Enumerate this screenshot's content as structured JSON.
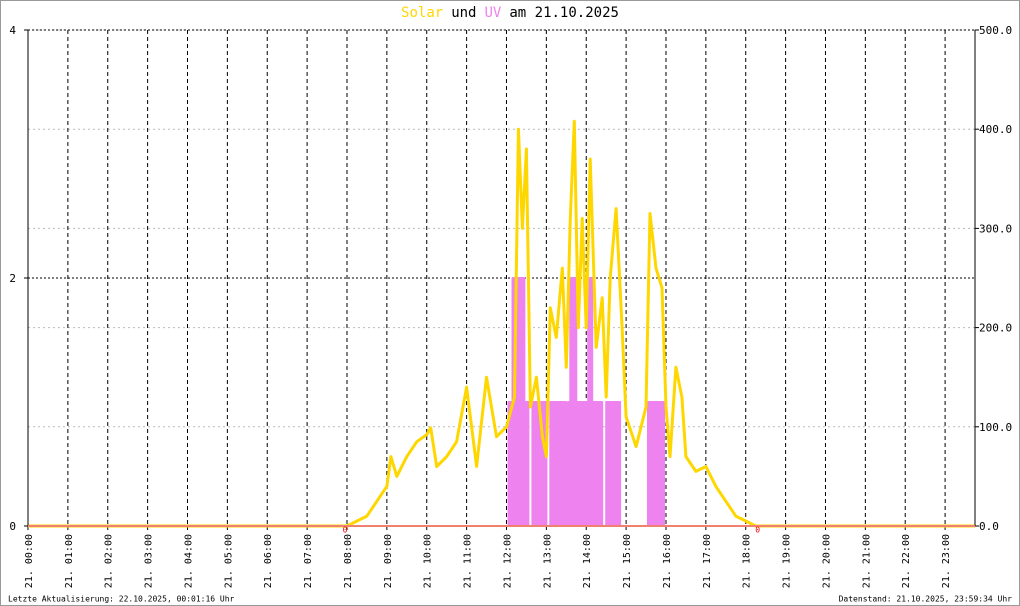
{
  "chart_data": {
    "type": "line",
    "title": [
      "Solar",
      "und",
      "UV",
      "am 21.10.2025"
    ],
    "xlim": [
      0,
      23.75
    ],
    "xticks": [
      {
        "value": 0,
        "label": "21. 00:00"
      },
      {
        "value": 1,
        "label": "21. 01:00"
      },
      {
        "value": 2,
        "label": "21. 02:00"
      },
      {
        "value": 3,
        "label": "21. 03:00"
      },
      {
        "value": 4,
        "label": "21. 04:00"
      },
      {
        "value": 5,
        "label": "21. 05:00"
      },
      {
        "value": 6,
        "label": "21. 06:00"
      },
      {
        "value": 7,
        "label": "21. 07:00"
      },
      {
        "value": 8,
        "label": "21. 08:00"
      },
      {
        "value": 9,
        "label": "21. 09:00"
      },
      {
        "value": 10,
        "label": "21. 10:00"
      },
      {
        "value": 11,
        "label": "21. 11:00"
      },
      {
        "value": 12,
        "label": "21. 12:00"
      },
      {
        "value": 13,
        "label": "21. 13:00"
      },
      {
        "value": 14,
        "label": "21. 14:00"
      },
      {
        "value": 15,
        "label": "21. 15:00"
      },
      {
        "value": 16,
        "label": "21. 16:00"
      },
      {
        "value": 17,
        "label": "21. 17:00"
      },
      {
        "value": 18,
        "label": "21. 18:00"
      },
      {
        "value": 19,
        "label": "21. 19:00"
      },
      {
        "value": 20,
        "label": "21. 20:00"
      },
      {
        "value": 21,
        "label": "21. 21:00"
      },
      {
        "value": 22,
        "label": "21. 22:00"
      },
      {
        "value": 23,
        "label": "21. 23:00"
      }
    ],
    "ylim": [
      0,
      4
    ],
    "yticks": [
      0,
      2,
      4
    ],
    "y2lim": [
      0,
      500
    ],
    "y2ticks": [
      {
        "value": 0,
        "label": "0.0"
      },
      {
        "value": 100,
        "label": "100.0"
      },
      {
        "value": 200,
        "label": "200.0"
      },
      {
        "value": 300,
        "label": "300.0"
      },
      {
        "value": 400,
        "label": "400.0"
      },
      {
        "value": 500,
        "label": "500.0"
      }
    ],
    "grid": true,
    "series": [
      {
        "name": "Solar",
        "color": "#ffd700",
        "axis": "y2",
        "x": [
          0,
          8.0,
          8.25,
          8.5,
          8.75,
          9.0,
          9.1,
          9.25,
          9.5,
          9.75,
          10.0,
          10.1,
          10.25,
          10.5,
          10.75,
          11.0,
          11.25,
          11.5,
          11.75,
          12.0,
          12.2,
          12.3,
          12.4,
          12.5,
          12.6,
          12.75,
          12.9,
          13.0,
          13.1,
          13.25,
          13.4,
          13.5,
          13.6,
          13.7,
          13.8,
          13.9,
          14.0,
          14.1,
          14.25,
          14.4,
          14.5,
          14.6,
          14.75,
          14.9,
          15.0,
          15.25,
          15.5,
          15.6,
          15.75,
          15.9,
          16.0,
          16.1,
          16.25,
          16.4,
          16.5,
          16.75,
          17.0,
          17.25,
          17.5,
          17.75,
          18.0,
          18.25,
          23.75
        ],
        "values": [
          0,
          0,
          5,
          10,
          25,
          40,
          70,
          50,
          70,
          85,
          92,
          99,
          60,
          70,
          85,
          140,
          60,
          150,
          90,
          100,
          130,
          400,
          300,
          380,
          120,
          150,
          90,
          70,
          220,
          190,
          260,
          160,
          310,
          408,
          200,
          310,
          200,
          370,
          180,
          230,
          130,
          250,
          320,
          200,
          110,
          80,
          120,
          315,
          260,
          240,
          120,
          70,
          160,
          130,
          70,
          55,
          60,
          40,
          25,
          10,
          5,
          0,
          0
        ]
      },
      {
        "name": "UV",
        "color": "#ee82ee",
        "x": [
          0,
          12.05,
          12.05,
          12.15,
          12.15,
          12.45,
          12.45,
          12.55,
          12.55,
          12.65,
          12.65,
          13.0,
          13.0,
          13.1,
          13.1,
          13.5,
          13.5,
          13.55,
          13.55,
          13.6,
          13.6,
          13.75,
          13.75,
          14.05,
          14.05,
          14.15,
          14.15,
          14.4,
          14.4,
          14.5,
          14.5,
          14.85,
          14.85,
          15.55,
          15.55,
          15.95,
          15.95,
          23.75
        ],
        "values": [
          0,
          0,
          1,
          1,
          2,
          2,
          1,
          1,
          0,
          0,
          1,
          1,
          0,
          0,
          1,
          1,
          0,
          0,
          1,
          1,
          2,
          2,
          1,
          1,
          2,
          2,
          1,
          1,
          0,
          0,
          1,
          1,
          0,
          0,
          1,
          1,
          0,
          0
        ]
      }
    ],
    "annotations": [
      {
        "x": 7.95,
        "label": "0"
      },
      {
        "x": 18.3,
        "label": "0"
      }
    ],
    "footer_left": "Letzte Aktualisierung: 22.10.2025, 00:01:16 Uhr",
    "footer_right": "Datenstand: 21.10.2025, 23:59:34 Uhr"
  }
}
